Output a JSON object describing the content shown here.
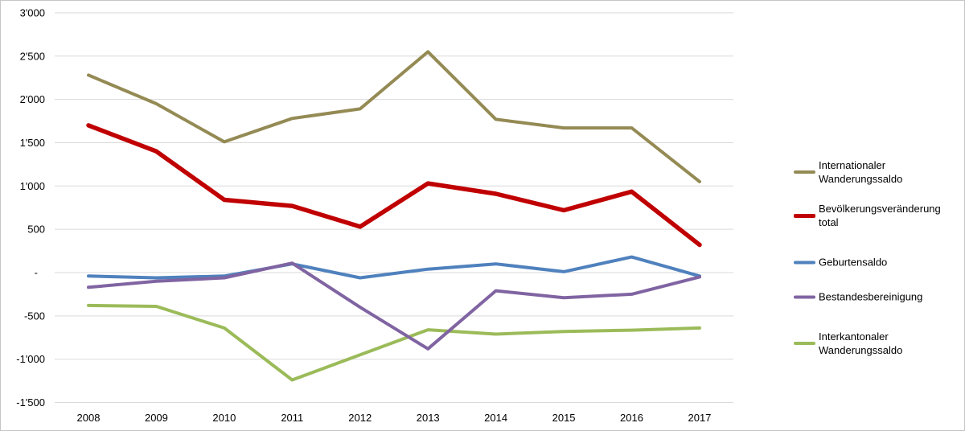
{
  "chart_data": {
    "type": "line",
    "x": [
      2008,
      2009,
      2010,
      2011,
      2012,
      2013,
      2014,
      2015,
      2016,
      2017
    ],
    "series": [
      {
        "name": "Internationaler Wanderungssaldo",
        "legend_label": "Internationaler\nWanderungssaldo",
        "color": "#948A54",
        "stroke_width": 4,
        "values": [
          2280,
          1950,
          1510,
          1780,
          1890,
          2550,
          1770,
          1670,
          1670,
          1050
        ]
      },
      {
        "name": "Bevölkerungsveränderung total",
        "legend_label": "Bevölkerungsveränderung\ntotal",
        "color": "#C00000",
        "stroke_width": 5.5,
        "values": [
          1700,
          1400,
          840,
          770,
          530,
          1030,
          910,
          720,
          935,
          320
        ]
      },
      {
        "name": "Geburtensaldo",
        "legend_label": "Geburtensaldo",
        "color": "#4F81BD",
        "stroke_width": 4,
        "values": [
          -40,
          -60,
          -40,
          100,
          -60,
          40,
          100,
          10,
          180,
          -40
        ]
      },
      {
        "name": "Bestandesbereinigung",
        "legend_label": "Bestandesbereinigung",
        "color": "#8064A2",
        "stroke_width": 4,
        "values": [
          -170,
          -100,
          -60,
          110,
          -400,
          -880,
          -210,
          -290,
          -250,
          -50
        ]
      },
      {
        "name": "Interkantonaler Wanderungssaldo",
        "legend_label": "Interkantonaler\nWanderungssaldo",
        "color": "#9BBB59",
        "stroke_width": 4,
        "values": [
          -380,
          -390,
          -640,
          -1240,
          -950,
          -660,
          -710,
          -680,
          -665,
          -640
        ]
      }
    ],
    "y_axis": {
      "min": -1500,
      "max": 3000,
      "step": 500,
      "tick_labels": [
        "3'000",
        "2'500",
        "2'000",
        "1'500",
        "1'000",
        "500",
        "-",
        "-500",
        "-1'000",
        "-1'500"
      ]
    },
    "x_axis": {
      "tick_labels": [
        "2008",
        "2009",
        "2010",
        "2011",
        "2012",
        "2013",
        "2014",
        "2015",
        "2016",
        "2017"
      ]
    },
    "grid": true,
    "legend_position": "right"
  },
  "colors": {
    "background": "#FFFFFF",
    "border": "#C6C6C6",
    "gridline": "#D9D9D9",
    "axis_text": "#000000"
  }
}
